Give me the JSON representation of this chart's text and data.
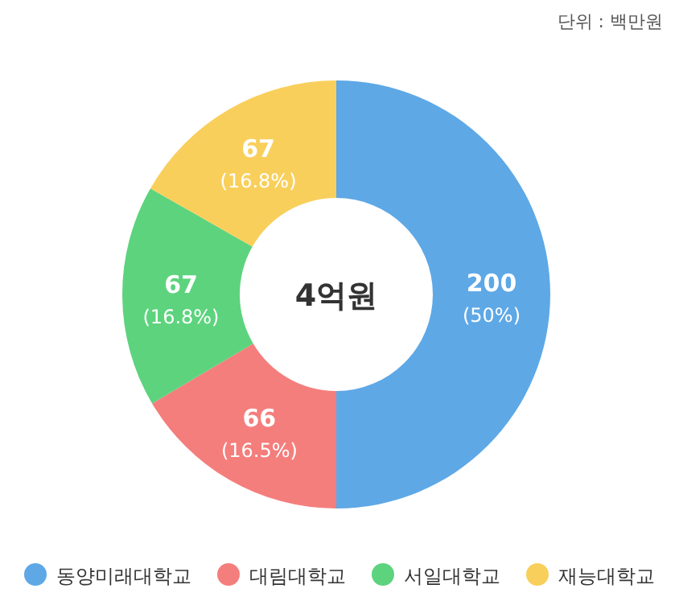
{
  "chart_data": {
    "type": "donut",
    "subtitle": "단위 : 백만원",
    "categories": [
      "동양미래대학교",
      "대림대학교",
      "서일대학교",
      "재능대학교"
    ],
    "values": [
      200,
      66,
      67,
      67
    ],
    "colors": [
      "#5ea8e6",
      "#f47e7c",
      "#5dd37e",
      "#f9cf5c"
    ],
    "value_labels": [
      "200 (50%)",
      "66 (16.5%)",
      "67 (16.8%)",
      "67 (16.8%)"
    ],
    "annotations": [
      "4억원"
    ],
    "legend": "bottom"
  }
}
